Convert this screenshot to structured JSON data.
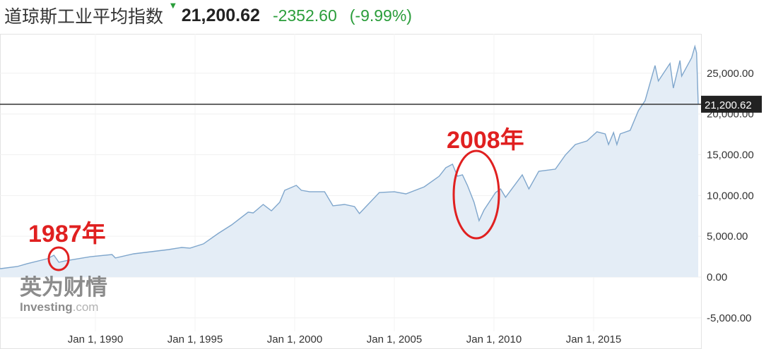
{
  "header": {
    "title": "道琼斯工业平均指数",
    "direction_icon": "triangle-down-icon",
    "price": "21,200.62",
    "change": "-2352.60",
    "change_pct": "(-9.99%)",
    "change_color": "#2a9d3a"
  },
  "watermark": {
    "brand_cn": "英为财情",
    "brand_en": "Investing",
    "brand_suffix": ".com"
  },
  "annotations": [
    {
      "label": "1987年",
      "at": "1987-12"
    },
    {
      "label": "2008年",
      "at": "2009-03"
    }
  ],
  "chart_data": {
    "type": "area",
    "title": "",
    "xlabel": "",
    "ylabel": "",
    "x_ticks": [
      "Jan 1, 1990",
      "Jan 1, 1995",
      "Jan 1, 2000",
      "Jan 1, 2005",
      "Jan 1, 2010",
      "Jan 1, 2015"
    ],
    "y_ticks": [
      "25,000.00",
      "20,000.00",
      "15,000.00",
      "10,000.00",
      "5,000.00",
      "0.00",
      "-5,000.00"
    ],
    "ylim": [
      -6600,
      29700
    ],
    "xlim": [
      "1985-03",
      "2020-06"
    ],
    "grid": true,
    "current_value_label": "21,200.62",
    "current_value": 21200.62,
    "line_color": "#7fa6cc",
    "fill_color": "#e4edf6",
    "x": [
      "1985-04",
      "1986-02",
      "1986-08",
      "1987-08",
      "1987-12",
      "1988-03",
      "1988-07",
      "1989-10",
      "1990-11",
      "1991-01",
      "1991-12",
      "1993-09",
      "1994-05",
      "1994-10",
      "1995-06",
      "1996-03",
      "1996-11",
      "1997-09",
      "1997-12",
      "1998-06",
      "1998-11",
      "1999-04",
      "1999-07",
      "2000-02",
      "2000-05",
      "2000-10",
      "2001-07",
      "2001-12",
      "2002-07",
      "2003-01",
      "2003-04",
      "2004-04",
      "2005-01",
      "2005-08",
      "2006-07",
      "2007-04",
      "2007-08",
      "2007-12",
      "2008-03",
      "2008-06",
      "2008-09",
      "2009-01",
      "2009-04",
      "2009-07",
      "2010-02",
      "2010-05",
      "2010-08",
      "2011-06",
      "2011-10",
      "2012-04",
      "2013-02",
      "2013-08",
      "2014-02",
      "2014-09",
      "2015-03",
      "2015-08",
      "2015-10",
      "2016-01",
      "2016-03",
      "2016-05",
      "2016-11",
      "2017-04",
      "2017-08",
      "2018-02",
      "2018-04",
      "2018-11",
      "2019-01",
      "2019-05",
      "2019-06",
      "2019-12",
      "2020-02",
      "2020-03",
      "2020-04"
    ],
    "values": [
      1040,
      1300,
      1650,
      2250,
      2680,
      1820,
      2000,
      2500,
      2770,
      2340,
      2850,
      3370,
      3630,
      3550,
      4070,
      5360,
      6400,
      7960,
      7870,
      8910,
      8130,
      9170,
      10640,
      11250,
      10640,
      10470,
      10470,
      8740,
      8910,
      8650,
      7790,
      10380,
      10470,
      10200,
      11070,
      12370,
      13410,
      13840,
      12370,
      12540,
      11250,
      9170,
      6920,
      8220,
      10380,
      10810,
      9780,
      12540,
      10810,
      12980,
      13240,
      14970,
      16260,
      16700,
      17820,
      17560,
      16260,
      17730,
      16260,
      17560,
      17990,
      20420,
      21630,
      25950,
      24050,
      26210,
      23180,
      26560,
      24650,
      26900,
      28290,
      27510,
      21200.62
    ]
  }
}
